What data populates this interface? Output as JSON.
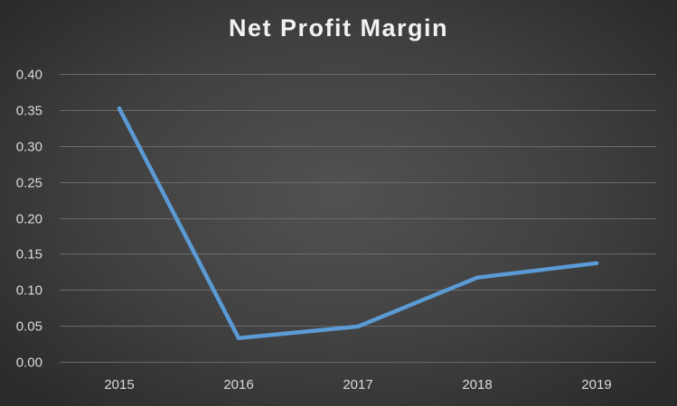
{
  "chart_data": {
    "type": "line",
    "title": "Net Profit Margin",
    "xlabel": "",
    "ylabel": "",
    "categories": [
      "2015",
      "2016",
      "2017",
      "2018",
      "2019"
    ],
    "series": [
      {
        "values": [
          0.352,
          0.033,
          0.049,
          0.117,
          0.137
        ],
        "color": "#5b9bd5"
      }
    ],
    "ylim": [
      0,
      0.4
    ],
    "yticks": [
      "0.00",
      "0.05",
      "0.10",
      "0.15",
      "0.20",
      "0.25",
      "0.30",
      "0.35",
      "0.40"
    ],
    "grid": true,
    "legend": "none"
  }
}
